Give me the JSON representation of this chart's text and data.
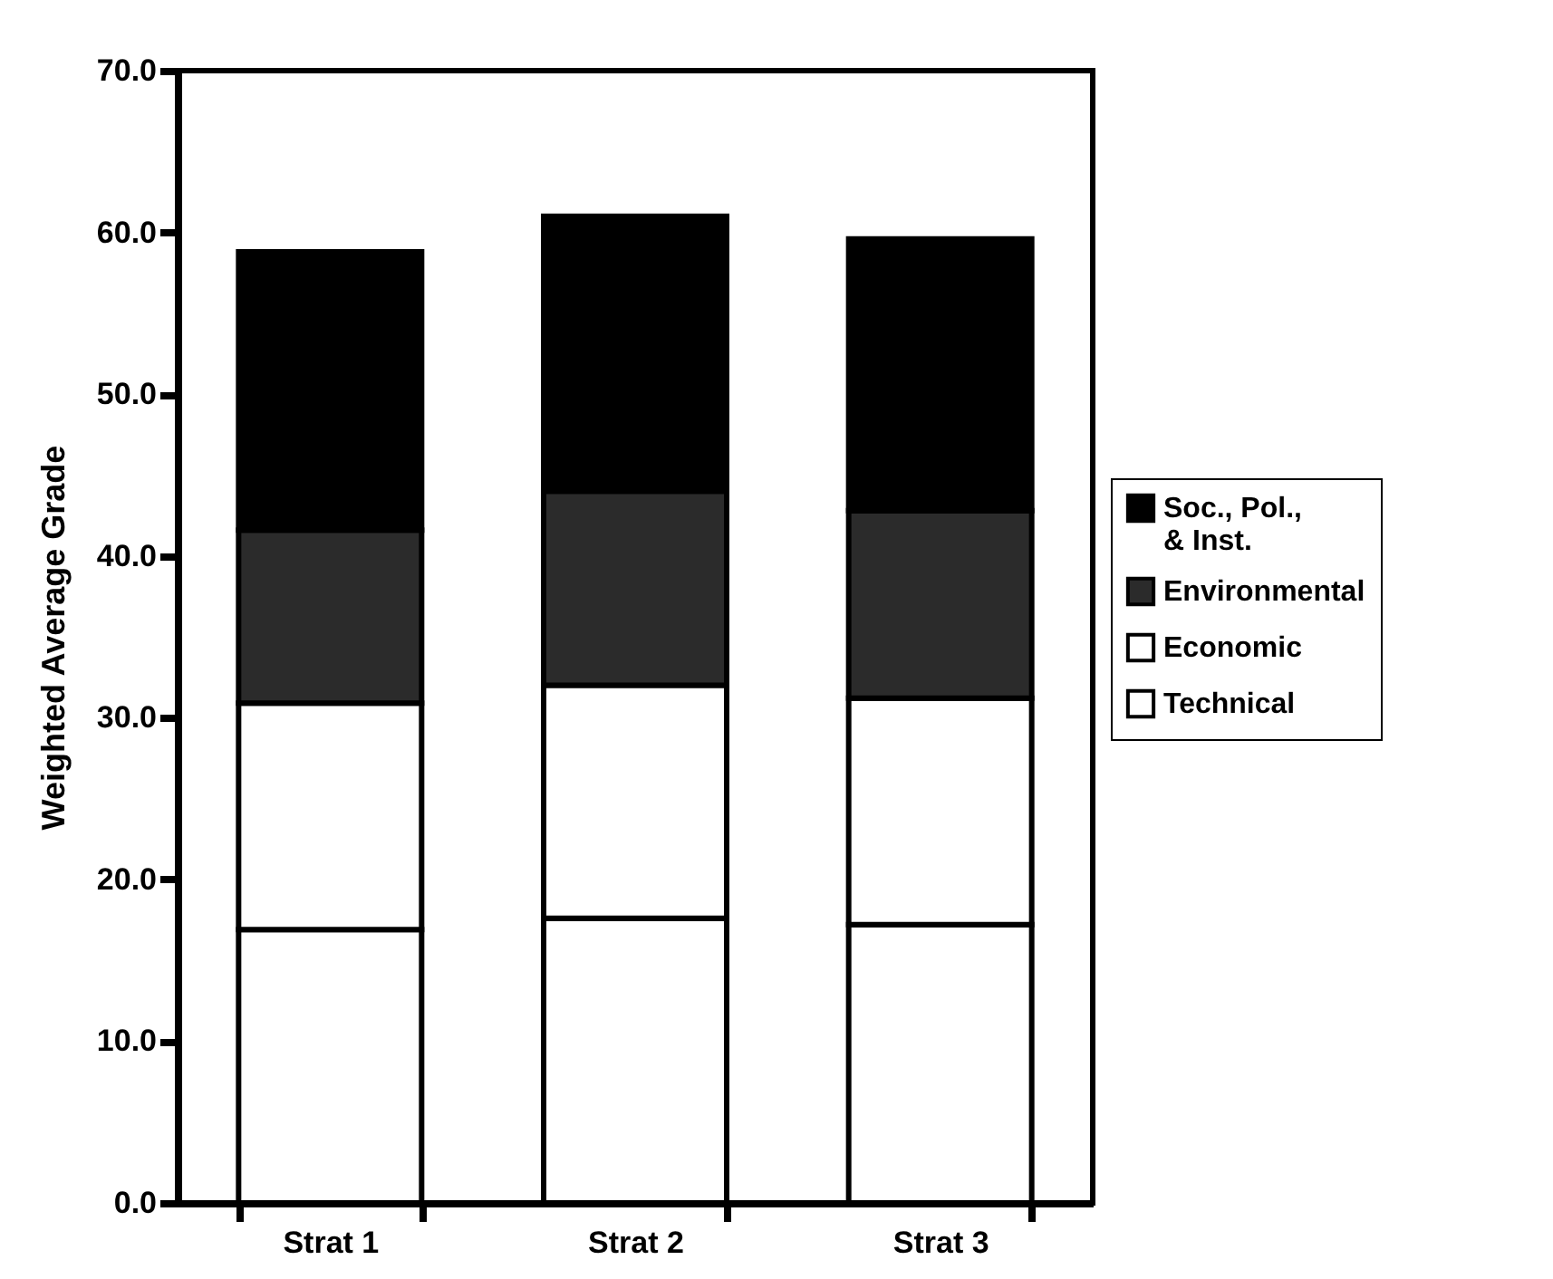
{
  "chart_data": {
    "type": "bar",
    "stacked": true,
    "ylabel": "Weighted Average Grade",
    "categories": [
      "Strat 1",
      "Strat 2",
      "Strat 3"
    ],
    "series": [
      {
        "name": "Technical",
        "color": "#ffffff",
        "values": [
          16.9,
          17.6,
          17.2
        ]
      },
      {
        "name": "Economic",
        "color": "#ffffff",
        "values": [
          14.0,
          14.4,
          14.0
        ]
      },
      {
        "name": "Environmental",
        "color": "#2b2b2b",
        "values": [
          10.7,
          12.0,
          11.6
        ]
      },
      {
        "name": "Soc., Pol.,\n& Inst.",
        "color": "#000000",
        "values": [
          17.2,
          17.0,
          16.8
        ]
      }
    ],
    "ylim": [
      0,
      70
    ],
    "yticks": [
      {
        "value": 0,
        "label": "0.0"
      },
      {
        "value": 10,
        "label": "10.0"
      },
      {
        "value": 20,
        "label": "20.0"
      },
      {
        "value": 30,
        "label": "30.0"
      },
      {
        "value": 40,
        "label": "40.0"
      },
      {
        "value": 50,
        "label": "50.0"
      },
      {
        "value": 60,
        "label": "60.0"
      },
      {
        "value": 70,
        "label": "70.0"
      }
    ],
    "grid": false,
    "legend": "right"
  }
}
